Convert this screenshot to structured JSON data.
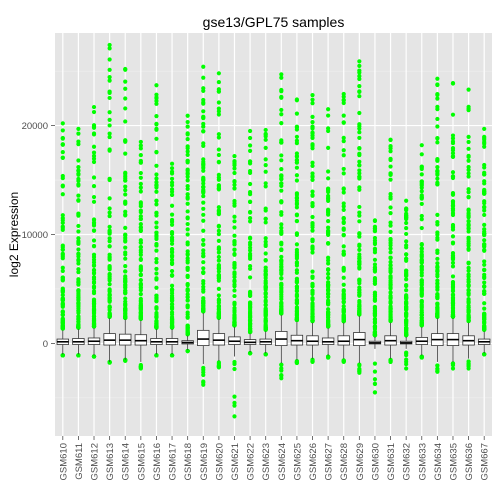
{
  "chart_data": {
    "type": "box",
    "title": "gse13/GPL75 samples",
    "xlabel": "",
    "ylabel": "log2 Expression",
    "ylim": [
      -8500,
      28500
    ],
    "yticks": [
      0,
      10000,
      20000
    ],
    "ytick_labels": [
      "0",
      "10000",
      "20000"
    ],
    "grid": true,
    "outlier_color": "#00ff00",
    "panel_background": "#e5e5e5",
    "categories": [
      "GSM610",
      "GSM611",
      "GSM612",
      "GSM613",
      "GSM614",
      "GSM615",
      "GSM616",
      "GSM617",
      "GSM618",
      "GSM619",
      "GSM620",
      "GSM621",
      "GSM622",
      "GSM623",
      "GSM624",
      "GSM625",
      "GSM626",
      "GSM627",
      "GSM628",
      "GSM629",
      "GSM630",
      "GSM631",
      "GSM632",
      "GSM633",
      "GSM634",
      "GSM635",
      "GSM636",
      "GSM667"
    ],
    "boxes": [
      {
        "q1": -100,
        "median": 150,
        "q3": 400,
        "lower_whisker": -1000,
        "upper_whisker": 1200,
        "min": -1100,
        "max": 20200
      },
      {
        "q1": -100,
        "median": 150,
        "q3": 450,
        "lower_whisker": -1000,
        "upper_whisker": 1300,
        "min": -1100,
        "max": 19700
      },
      {
        "q1": -100,
        "median": 200,
        "q3": 500,
        "lower_whisker": -1100,
        "upper_whisker": 1400,
        "min": -1200,
        "max": 21700
      },
      {
        "q1": -150,
        "median": 300,
        "q3": 900,
        "lower_whisker": -1700,
        "upper_whisker": 2300,
        "min": -1700,
        "max": 27400
      },
      {
        "q1": -150,
        "median": 300,
        "q3": 850,
        "lower_whisker": -1500,
        "upper_whisker": 2200,
        "min": -1500,
        "max": 25200
      },
      {
        "q1": -150,
        "median": 250,
        "q3": 800,
        "lower_whisker": -1700,
        "upper_whisker": 2100,
        "min": -2300,
        "max": 18500
      },
      {
        "q1": -100,
        "median": 150,
        "q3": 450,
        "lower_whisker": -1000,
        "upper_whisker": 1300,
        "min": -1100,
        "max": 23700
      },
      {
        "q1": -100,
        "median": 150,
        "q3": 450,
        "lower_whisker": -1000,
        "upper_whisker": 1300,
        "min": -1100,
        "max": 16500
      },
      {
        "q1": -50,
        "median": 80,
        "q3": 250,
        "lower_whisker": -600,
        "upper_whisker": 700,
        "min": -700,
        "max": 20900
      },
      {
        "q1": -200,
        "median": 400,
        "q3": 1200,
        "lower_whisker": -1900,
        "upper_whisker": 2800,
        "min": -3800,
        "max": 25400
      },
      {
        "q1": -150,
        "median": 300,
        "q3": 900,
        "lower_whisker": -1600,
        "upper_whisker": 2200,
        "min": -2200,
        "max": 24800
      },
      {
        "q1": -100,
        "median": 200,
        "q3": 600,
        "lower_whisker": -1200,
        "upper_whisker": 1500,
        "min": -6700,
        "max": 17200
      },
      {
        "q1": -100,
        "median": 100,
        "q3": 350,
        "lower_whisker": -800,
        "upper_whisker": 900,
        "min": -900,
        "max": 19500
      },
      {
        "q1": -100,
        "median": 150,
        "q3": 400,
        "lower_whisker": -900,
        "upper_whisker": 1100,
        "min": -1000,
        "max": 19600
      },
      {
        "q1": -200,
        "median": 400,
        "q3": 1100,
        "lower_whisker": -1800,
        "upper_whisker": 2600,
        "min": -3200,
        "max": 24700
      },
      {
        "q1": -150,
        "median": 250,
        "q3": 750,
        "lower_whisker": -1500,
        "upper_whisker": 2000,
        "min": -1800,
        "max": 22400
      },
      {
        "q1": -150,
        "median": 200,
        "q3": 700,
        "lower_whisker": -1400,
        "upper_whisker": 1900,
        "min": -1700,
        "max": 22800
      },
      {
        "q1": -100,
        "median": 150,
        "q3": 500,
        "lower_whisker": -1100,
        "upper_whisker": 1400,
        "min": -1300,
        "max": 21500
      },
      {
        "q1": -150,
        "median": 200,
        "q3": 700,
        "lower_whisker": -1400,
        "upper_whisker": 1900,
        "min": -1700,
        "max": 22900
      },
      {
        "q1": -200,
        "median": 350,
        "q3": 1000,
        "lower_whisker": -1800,
        "upper_whisker": 2500,
        "min": -2700,
        "max": 25900
      },
      {
        "q1": -50,
        "median": 50,
        "q3": 200,
        "lower_whisker": -500,
        "upper_whisker": 600,
        "min": -4500,
        "max": 11300
      },
      {
        "q1": -150,
        "median": 250,
        "q3": 700,
        "lower_whisker": -1400,
        "upper_whisker": 1900,
        "min": -1700,
        "max": 18700
      },
      {
        "q1": -50,
        "median": 50,
        "q3": 200,
        "lower_whisker": -500,
        "upper_whisker": 600,
        "min": -2300,
        "max": 13100
      },
      {
        "q1": -100,
        "median": 200,
        "q3": 550,
        "lower_whisker": -1100,
        "upper_whisker": 1500,
        "min": -1300,
        "max": 18200
      },
      {
        "q1": -200,
        "median": 350,
        "q3": 900,
        "lower_whisker": -1700,
        "upper_whisker": 2300,
        "min": -2600,
        "max": 24300
      },
      {
        "q1": -200,
        "median": 350,
        "q3": 900,
        "lower_whisker": -1700,
        "upper_whisker": 2300,
        "min": -2300,
        "max": 23900
      },
      {
        "q1": -150,
        "median": 250,
        "q3": 700,
        "lower_whisker": -1400,
        "upper_whisker": 1900,
        "min": -2300,
        "max": 23300
      },
      {
        "q1": -100,
        "median": 150,
        "q3": 400,
        "lower_whisker": -900,
        "upper_whisker": 1100,
        "min": -1000,
        "max": 19700
      }
    ]
  }
}
